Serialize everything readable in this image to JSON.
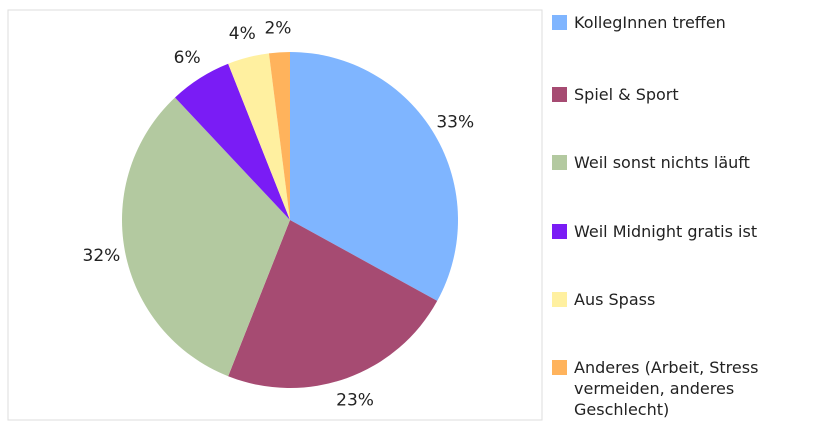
{
  "chart_data": {
    "type": "pie",
    "categories": [
      "KollegInnen treffen",
      "Spiel & Sport",
      "Weil sonst nichts läuft",
      "Weil Midnight gratis ist",
      "Aus Spass",
      "Anderes (Arbeit, Stress vermeiden, anderes Geschlecht)"
    ],
    "values": [
      33,
      23,
      32,
      6,
      4,
      2
    ],
    "value_labels": [
      "33%",
      "23%",
      "32%",
      "6%",
      "4%",
      "2%"
    ],
    "colors": [
      "#7fb5ff",
      "#a64b72",
      "#b3c9a0",
      "#7a1cf5",
      "#fff0a0",
      "#ffb35c"
    ],
    "legend": "right"
  }
}
